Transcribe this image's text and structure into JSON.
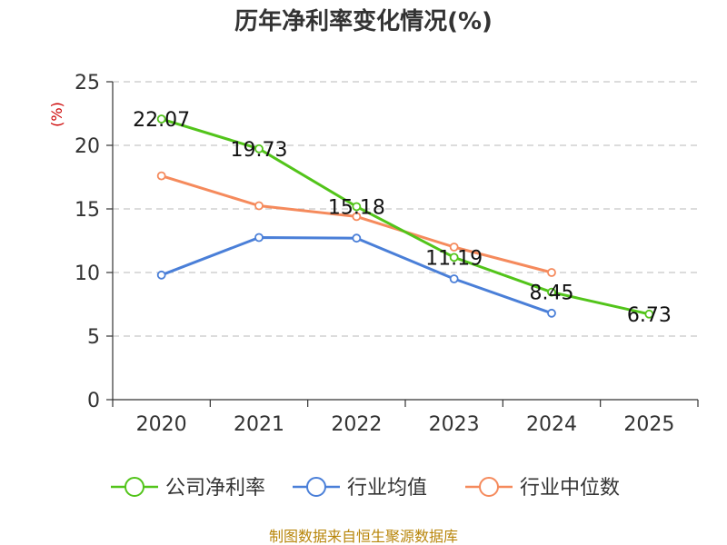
{
  "chart_data": {
    "type": "line",
    "title": "历年净利率变化情况(%)",
    "ylabel": "(%)",
    "xlabel": "",
    "categories": [
      "2020",
      "2021",
      "2022",
      "2023",
      "2024",
      "2025"
    ],
    "ylim": [
      0,
      25
    ],
    "yticks": [
      0,
      5,
      10,
      15,
      20,
      25
    ],
    "grid": true,
    "legend_position": "bottom",
    "series": [
      {
        "name": "公司净利率",
        "color": "#52c41a",
        "values": [
          22.07,
          19.73,
          15.18,
          11.19,
          8.45,
          6.73
        ],
        "labels": [
          "22.07",
          "19.73",
          "15.18",
          "11.19",
          "8.45",
          "6.73"
        ]
      },
      {
        "name": "行业均值",
        "color": "#4a7fd8",
        "values": [
          9.8,
          12.75,
          12.7,
          9.5,
          6.8,
          null
        ]
      },
      {
        "name": "行业中位数",
        "color": "#f58a5c",
        "values": [
          17.6,
          15.25,
          14.4,
          12.0,
          10.0,
          null
        ]
      }
    ]
  },
  "source": "制图数据来自恒生聚源数据库"
}
